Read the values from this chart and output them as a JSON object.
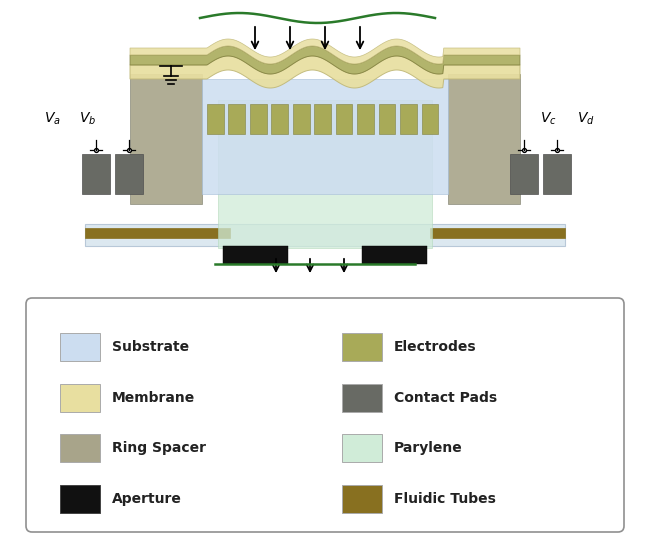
{
  "colors": {
    "substrate": "#ccddf0",
    "membrane": "#e8dfa0",
    "ring_spacer": "#a8a48a",
    "aperture": "#111111",
    "electrodes": "#a8aa58",
    "contact_pads": "#686a64",
    "parylene": "#d0ecd8",
    "fluidic_tubes": "#887020",
    "background": "#ffffff",
    "wave_beam": "#2a7a2a",
    "outer_electrode_top": "#b0aa6a",
    "bottom_plate": "#dce8f0",
    "bottom_plate_edge": "#b8c8d8"
  },
  "legend_items_left": [
    {
      "label": "Substrate",
      "color": "#ccddf0"
    },
    {
      "label": "Membrane",
      "color": "#e8dfa0"
    },
    {
      "label": "Ring Spacer",
      "color": "#a8a48a"
    },
    {
      "label": "Aperture",
      "color": "#111111"
    }
  ],
  "legend_items_right": [
    {
      "label": "Electrodes",
      "color": "#a8aa58"
    },
    {
      "label": "Contact Pads",
      "color": "#686a64"
    },
    {
      "label": "Parylene",
      "color": "#d0ecd8"
    },
    {
      "label": "Fluidic Tubes",
      "color": "#887020"
    }
  ]
}
